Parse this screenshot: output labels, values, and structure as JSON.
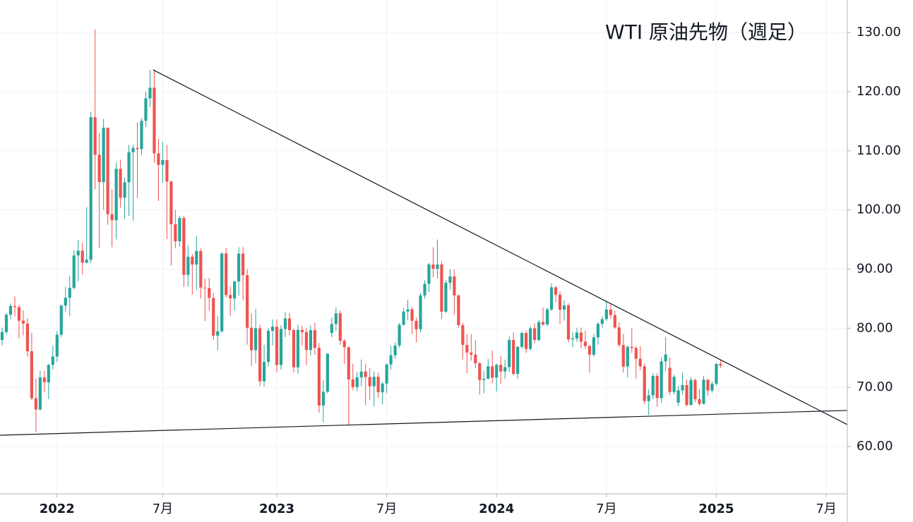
{
  "chart_data": {
    "type": "candlestick",
    "title": "WTI 原油先物（週足）",
    "up_color": "#26a69a",
    "down_color": "#ef5350",
    "open": [
      78.0,
      79.35,
      82.28,
      83.76,
      83.57,
      81.27,
      80.79,
      76.1,
      68.15,
      66.26,
      71.67,
      70.86,
      73.79,
      75.21,
      78.9,
      83.82,
      85.14,
      86.82,
      92.31,
      93.1,
      91.07,
      91.59,
      115.68,
      109.33,
      104.7,
      113.9,
      99.27,
      98.26,
      106.95,
      102.07,
      104.69,
      109.77,
      110.49,
      110.28,
      115.07,
      118.87,
      120.67,
      109.56,
      107.62,
      108.43,
      104.79,
      97.59,
      94.7,
      98.62,
      89.01,
      92.09,
      90.77,
      93.06,
      86.87,
      86.79,
      85.11,
      78.74,
      79.49,
      92.64,
      85.61,
      85.05,
      87.9,
      92.61,
      88.96,
      80.08,
      76.28,
      79.98,
      71.02,
      74.29,
      79.56,
      80.26,
      73.77,
      79.86,
      81.64,
      79.68,
      73.39,
      79.72,
      79.34,
      76.32,
      79.68,
      76.68,
      66.93,
      69.26,
      79.2,
      80.7,
      82.52,
      77.87,
      76.78,
      71.34,
      70.04,
      71.69,
      72.67,
      71.74,
      70.17,
      71.78,
      69.16,
      70.64,
      73.86,
      75.42,
      77.07,
      80.58,
      82.82,
      83.19,
      81.25,
      79.83,
      85.55,
      87.51,
      90.77,
      90.03,
      90.79,
      82.79,
      87.69,
      88.75,
      85.54,
      80.51,
      77.17,
      75.89,
      75.54,
      74.07,
      71.23,
      71.43,
      73.56,
      71.65,
      73.81,
      72.68,
      73.41,
      78.01,
      72.28,
      76.84,
      79.19,
      76.49,
      79.97,
      78.01,
      81.04,
      80.63,
      83.17,
      86.91,
      85.66,
      83.14,
      83.85,
      78.11,
      78.26,
      79.26,
      77.72,
      76.99,
      75.53,
      78.45,
      80.73,
      81.54,
      83.16,
      82.21,
      80.13,
      77.16,
      73.52,
      76.84,
      76.65,
      74.83,
      73.55,
      67.67,
      68.65,
      71.92,
      68.18,
      74.38,
      73.3,
      69.22,
      67.4,
      69.49,
      70.38,
      67.02,
      71.24,
      68.0,
      67.2,
      71.29,
      69.46,
      70.6,
      73.96
    ],
    "high": [
      80.1,
      82.6,
      84.2,
      85.4,
      84.0,
      83.0,
      81.7,
      79.2,
      71.5,
      72.8,
      72.8,
      74.0,
      77.0,
      79.5,
      84.0,
      87.0,
      88.8,
      93.2,
      94.9,
      94.5,
      100.5,
      116.6,
      130.5,
      113.0,
      115.4,
      113.4,
      103.5,
      108.0,
      108.5,
      105.5,
      111.0,
      111.0,
      114.8,
      115.5,
      120.0,
      123.7,
      123.7,
      112.0,
      111.5,
      111.0,
      105.0,
      100.0,
      99.0,
      99.0,
      94.0,
      92.5,
      95.6,
      93.5,
      88.4,
      88.5,
      86.0,
      82.0,
      92.8,
      93.6,
      87.0,
      88.0,
      93.7,
      93.7,
      90.0,
      82.5,
      83.3,
      80.6,
      77.2,
      80.0,
      81.5,
      81.5,
      80.5,
      82.7,
      82.6,
      79.9,
      80.6,
      80.4,
      80.0,
      80.5,
      80.9,
      77.5,
      71.3,
      75.8,
      81.8,
      83.5,
      83.0,
      78.2,
      76.9,
      74.0,
      72.6,
      74.7,
      74.0,
      73.3,
      72.7,
      72.5,
      70.9,
      74.0,
      77.0,
      77.6,
      80.9,
      83.4,
      84.8,
      83.6,
      81.8,
      86.0,
      88.1,
      91.0,
      93.7,
      95.0,
      91.3,
      88.2,
      90.0,
      89.9,
      85.7,
      80.9,
      79.0,
      79.0,
      78.0,
      74.3,
      72.8,
      74.8,
      76.2,
      74.0,
      75.3,
      74.7,
      78.6,
      79.3,
      77.0,
      79.4,
      79.6,
      80.3,
      80.8,
      81.4,
      83.5,
      83.5,
      87.6,
      87.1,
      86.2,
      84.7,
      84.2,
      79.3,
      80.0,
      80.1,
      79.6,
      77.2,
      79.0,
      81.0,
      82.0,
      84.5,
      84.0,
      83.0,
      81.0,
      79.0,
      77.1,
      80.0,
      77.0,
      77.0,
      74.0,
      69.7,
      72.4,
      72.4,
      75.1,
      78.5,
      75.0,
      72.1,
      70.2,
      72.5,
      71.3,
      71.7,
      71.5,
      69.7,
      71.9,
      71.4,
      71.0,
      74.1,
      74.6
    ],
    "low": [
      77.1,
      78.9,
      81.5,
      82.0,
      78.3,
      78.8,
      75.2,
      67.8,
      62.4,
      66.1,
      69.2,
      68.0,
      73.0,
      74.3,
      78.5,
      82.8,
      82.0,
      86.6,
      87.9,
      89.0,
      91.0,
      91.0,
      103.5,
      93.5,
      100.0,
      97.5,
      93.7,
      95.0,
      100.4,
      98.5,
      99.0,
      98.2,
      102.0,
      109.3,
      114.0,
      117.4,
      108.0,
      101.5,
      104.6,
      95.1,
      90.6,
      93.5,
      93.8,
      87.0,
      87.0,
      85.7,
      86.5,
      85.0,
      81.2,
      83.0,
      78.0,
      76.3,
      79.2,
      85.2,
      82.1,
      83.0,
      85.5,
      84.7,
      77.2,
      73.6,
      74.1,
      70.2,
      70.1,
      73.5,
      77.1,
      72.5,
      73.0,
      78.5,
      78.8,
      72.5,
      72.3,
      77.0,
      73.8,
      75.4,
      75.5,
      65.7,
      64.1,
      69.0,
      78.5,
      79.6,
      77.2,
      74.0,
      63.6,
      69.5,
      69.4,
      70.2,
      67.0,
      67.9,
      66.8,
      68.2,
      67.1,
      69.0,
      73.0,
      74.8,
      76.7,
      80.4,
      81.4,
      79.0,
      77.6,
      79.3,
      85.0,
      86.1,
      88.6,
      88.4,
      81.5,
      82.6,
      86.5,
      82.3,
      80.1,
      74.7,
      72.4,
      74.5,
      73.3,
      68.8,
      69.0,
      71.4,
      70.7,
      69.3,
      70.6,
      71.4,
      72.6,
      72.0,
      71.4,
      76.5,
      75.8,
      76.2,
      77.5,
      77.8,
      80.4,
      80.3,
      82.9,
      84.4,
      80.7,
      81.3,
      77.6,
      76.8,
      77.7,
      76.6,
      76.5,
      72.5,
      75.2,
      77.2,
      80.1,
      81.2,
      81.6,
      79.9,
      76.8,
      72.5,
      71.7,
      75.8,
      71.5,
      72.9,
      67.2,
      65.3,
      68.0,
      66.7,
      67.4,
      72.8,
      68.7,
      68.8,
      66.8,
      68.8,
      66.8,
      66.9,
      67.5,
      66.9,
      67.1,
      68.6,
      69.1,
      70.3,
      73.3
    ],
    "close": [
      79.35,
      82.28,
      83.76,
      83.57,
      81.27,
      80.79,
      76.1,
      68.15,
      66.26,
      71.67,
      70.86,
      73.79,
      75.21,
      78.9,
      83.82,
      85.14,
      86.82,
      92.31,
      93.1,
      91.07,
      91.59,
      115.68,
      109.33,
      104.7,
      113.9,
      99.27,
      98.26,
      106.95,
      102.07,
      104.69,
      109.77,
      110.49,
      110.28,
      115.07,
      118.87,
      120.67,
      109.56,
      107.62,
      108.43,
      104.79,
      97.59,
      94.7,
      98.62,
      89.01,
      92.09,
      90.77,
      93.06,
      86.87,
      86.79,
      85.11,
      78.74,
      79.49,
      92.64,
      85.61,
      85.05,
      87.9,
      92.61,
      88.96,
      80.08,
      76.28,
      79.98,
      71.02,
      74.29,
      79.56,
      80.26,
      73.77,
      79.86,
      81.64,
      79.68,
      73.39,
      79.72,
      79.34,
      76.32,
      79.68,
      76.68,
      66.93,
      69.26,
      75.67,
      80.7,
      82.52,
      77.87,
      76.78,
      71.34,
      70.04,
      71.69,
      72.67,
      71.74,
      70.17,
      71.78,
      69.16,
      70.64,
      73.86,
      75.42,
      77.07,
      80.58,
      82.82,
      83.19,
      81.25,
      79.83,
      85.55,
      87.51,
      90.77,
      90.03,
      90.79,
      82.79,
      87.69,
      88.75,
      85.54,
      80.51,
      77.17,
      75.89,
      75.54,
      74.07,
      71.23,
      71.43,
      73.56,
      71.65,
      73.81,
      72.68,
      73.41,
      78.01,
      72.28,
      76.84,
      79.19,
      76.49,
      79.97,
      78.01,
      81.04,
      80.63,
      83.17,
      86.91,
      85.66,
      83.14,
      83.85,
      78.11,
      78.26,
      79.26,
      77.72,
      76.99,
      75.53,
      78.45,
      80.73,
      81.54,
      83.16,
      82.21,
      80.13,
      77.16,
      73.52,
      76.84,
      76.65,
      74.83,
      73.55,
      67.67,
      68.65,
      71.92,
      68.18,
      74.38,
      75.56,
      69.22,
      71.78,
      69.49,
      70.38,
      67.02,
      71.24,
      68.0,
      67.2,
      71.29,
      69.46,
      70.6,
      73.96,
      73.7
    ],
    "xlim": [
      -0.5,
      200
    ],
    "xticks": [
      {
        "value": 13,
        "label": "2022"
      },
      {
        "value": 38,
        "label": "7月"
      },
      {
        "value": 65,
        "label": "2023"
      },
      {
        "value": 91,
        "label": "7月"
      },
      {
        "value": 117,
        "label": "2024"
      },
      {
        "value": 143,
        "label": "7月"
      },
      {
        "value": 169,
        "label": "2025"
      },
      {
        "value": 195,
        "label": "7月"
      }
    ],
    "ylim": [
      52,
      135.5
    ],
    "yticks": [
      {
        "value": 60,
        "label": "60.00"
      },
      {
        "value": 70,
        "label": "70.00"
      },
      {
        "value": 80,
        "label": "80.00"
      },
      {
        "value": 90,
        "label": "90.00"
      },
      {
        "value": 100,
        "label": "100.00"
      },
      {
        "value": 110,
        "label": "110.00"
      },
      {
        "value": 120,
        "label": "120.00"
      },
      {
        "value": 130,
        "label": "130.00"
      }
    ],
    "grid": true,
    "trendlines": [
      {
        "x": [
          35.7,
          200
        ],
        "y": [
          123.7,
          63.7
        ],
        "color": "#131722"
      },
      {
        "x": [
          -0.5,
          200
        ],
        "y": [
          61.9,
          66.1
        ],
        "color": "#131722"
      }
    ]
  }
}
